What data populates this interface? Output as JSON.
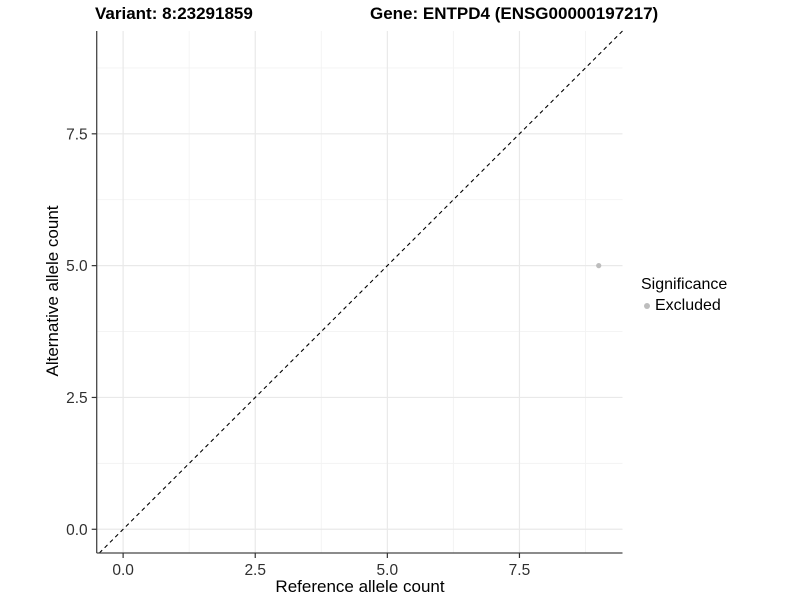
{
  "chart_data": {
    "type": "scatter",
    "title_left": "Variant: 8:23291859",
    "title_right": "Gene: ENTPD4 (ENSG00000197217)",
    "xlabel": "Reference allele count",
    "ylabel": "Alternative allele count",
    "xlim": [
      -0.5,
      9.45
    ],
    "ylim": [
      -0.45,
      9.45
    ],
    "major_ticks": [
      0,
      2.5,
      5,
      7.5
    ],
    "x_tick_labels": [
      "0.0",
      "2.5",
      "5.0",
      "7.5"
    ],
    "y_tick_labels": [
      "0.0",
      "2.5",
      "5.0",
      "7.5"
    ],
    "minor_gridlines": [
      1.25,
      3.75,
      6.25,
      8.75
    ],
    "grid": true,
    "identity_line": {
      "slope": 1,
      "intercept": 0,
      "style": "dashed"
    },
    "points": [
      {
        "x": 9,
        "y": 5,
        "series": "Excluded"
      }
    ],
    "legend": {
      "title": "Significance",
      "position": "right",
      "items": [
        {
          "label": "Excluded",
          "color": "#bdbdbd"
        }
      ]
    },
    "colors": {
      "point": "#bdbdbd",
      "identity_line": "#000000",
      "axis_line": "#464646",
      "tick_mark": "#333333",
      "tick_label": "#303030",
      "grid_major": "#e9e9e9",
      "grid_minor": "#f3f3f3",
      "background": "#ffffff"
    }
  }
}
